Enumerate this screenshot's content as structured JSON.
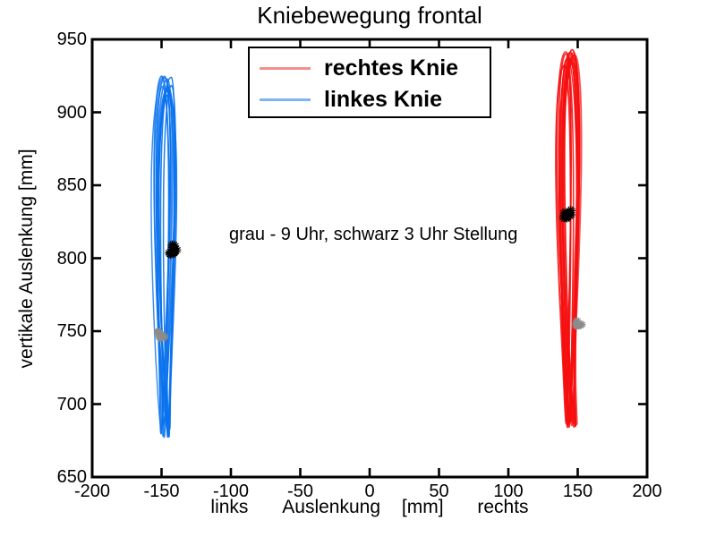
{
  "title": "Kniebewegung frontal",
  "annotation": "grau - 9 Uhr, schwarz 3 Uhr Stellung",
  "chart_data": {
    "type": "line",
    "title": "Kniebewegung frontal",
    "xlabel": "links    Auslenkung    [mm]    rechts",
    "xlabel_parts": [
      "links",
      "Auslenkung",
      "[mm]",
      "rechts"
    ],
    "ylabel": "vertikale Auslenkung [mm]",
    "xlim": [
      -200,
      200
    ],
    "ylim": [
      650,
      950
    ],
    "xticks": [
      -200,
      -150,
      -100,
      -50,
      0,
      50,
      100,
      150,
      200
    ],
    "yticks": [
      650,
      700,
      750,
      800,
      850,
      900,
      950
    ],
    "grid": false,
    "frame_color": "#000000",
    "series": [
      {
        "name": "rechtes Knie",
        "color": "#f50f0f",
        "shape": "bundle of ~14 narrow vertical loop trajectories",
        "center_x": 144,
        "x_halfwidth_mm": 11,
        "y_top": 943,
        "y_bottom": 684,
        "loops": 14
      },
      {
        "name": "linkes Knie",
        "color": "#0a72ee",
        "shape": "bundle of ~12 narrow vertical loop trajectories",
        "center_x": -147,
        "x_halfwidth_mm": 10.5,
        "y_top": 925,
        "y_bottom": 676,
        "loops": 12
      }
    ],
    "markers": [
      {
        "label": "schwarz 3 Uhr Stellung, rechtes Knie",
        "color": "#000000",
        "x": 142,
        "y": 831
      },
      {
        "label": "grau 9 Uhr Stellung, rechtes Knie",
        "color": "#8c8c8c",
        "x": 150,
        "y": 756
      },
      {
        "label": "schwarz 3 Uhr Stellung, linkes Knie",
        "color": "#000000",
        "x": -142,
        "y": 806
      },
      {
        "label": "grau 9 Uhr Stellung, linkes Knie",
        "color": "#8c8c8c",
        "x": -150,
        "y": 747
      }
    ],
    "legend": {
      "position": "upper-center",
      "entries": [
        {
          "label": "rechtes Knie",
          "color": "#f2908e"
        },
        {
          "label": "linkes Knie",
          "color": "#7db4f0"
        }
      ]
    }
  }
}
